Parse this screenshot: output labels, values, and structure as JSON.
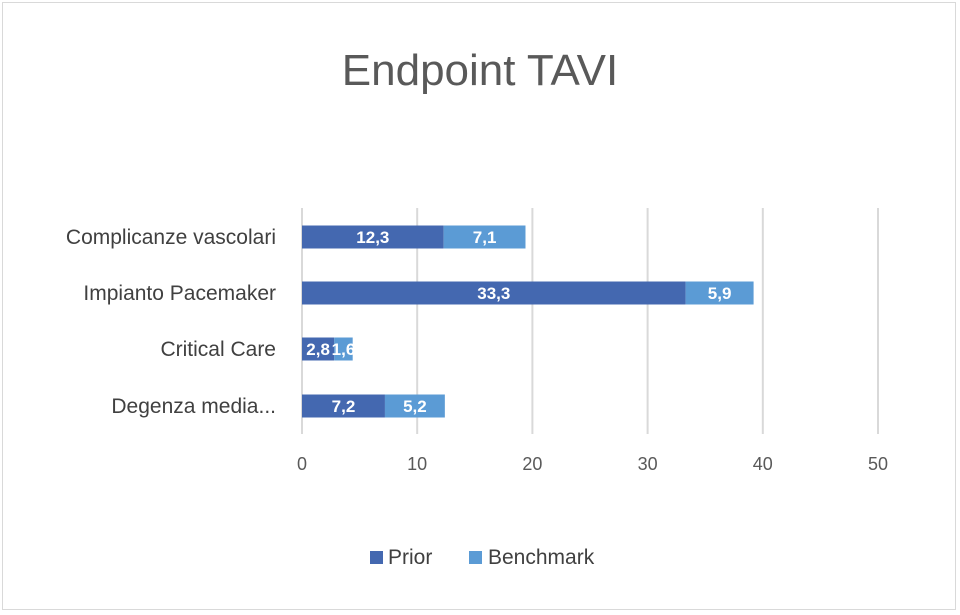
{
  "chart_data": {
    "type": "bar",
    "orientation": "horizontal",
    "stacked": true,
    "title": "Endpoint TAVI",
    "categories": [
      "Complicanze vascolari",
      "Impianto Pacemaker",
      "Critical Care",
      "Degenza media..."
    ],
    "series": [
      {
        "name": "Prior",
        "values": [
          12.3,
          33.3,
          2.8,
          7.2
        ],
        "labels": [
          "12,3",
          "33,3",
          "2,8",
          "7,2"
        ],
        "color": "#4468b0"
      },
      {
        "name": "Benchmark",
        "values": [
          7.1,
          5.9,
          1.6,
          5.2
        ],
        "labels": [
          "7,1",
          "5,9",
          "1,6",
          "5,2"
        ],
        "color": "#5b9bd5"
      }
    ],
    "xlim": [
      0,
      50
    ],
    "xticks": [
      "0",
      "10",
      "20",
      "30",
      "40",
      "50"
    ],
    "grid": true,
    "legend": "bottom",
    "xlabel": "",
    "ylabel": ""
  }
}
